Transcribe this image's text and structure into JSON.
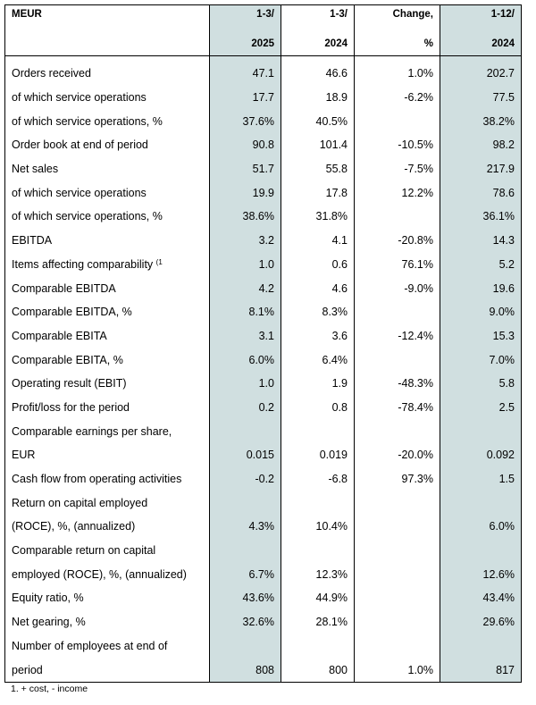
{
  "header": {
    "row1": [
      "MEUR",
      "1-3/",
      "1-3/",
      "Change,",
      "1-12/"
    ],
    "row2": [
      "",
      "2025",
      "2024",
      "%",
      "2024"
    ]
  },
  "rows": [
    {
      "label": "Orders received",
      "sup": "",
      "v": [
        "47.1",
        "46.6",
        "1.0%",
        "202.7"
      ]
    },
    {
      "label": "of which service operations",
      "sup": "",
      "v": [
        "17.7",
        "18.9",
        "-6.2%",
        "77.5"
      ]
    },
    {
      "label": "of which service operations, %",
      "sup": "",
      "v": [
        "37.6%",
        "40.5%",
        "",
        "38.2%"
      ]
    },
    {
      "label": "Order book at end of period",
      "sup": "",
      "v": [
        "90.8",
        "101.4",
        "-10.5%",
        "98.2"
      ]
    },
    {
      "label": "Net sales",
      "sup": "",
      "v": [
        "51.7",
        "55.8",
        "-7.5%",
        "217.9"
      ]
    },
    {
      "label": "of which service operations",
      "sup": "",
      "v": [
        "19.9",
        "17.8",
        "12.2%",
        "78.6"
      ]
    },
    {
      "label": "of which service operations, %",
      "sup": "",
      "v": [
        "38.6%",
        "31.8%",
        "",
        "36.1%"
      ]
    },
    {
      "label": "EBITDA",
      "sup": "",
      "v": [
        "3.2",
        "4.1",
        "-20.8%",
        "14.3"
      ]
    },
    {
      "label": "Items affecting comparability",
      "sup": "(1",
      "v": [
        "1.0",
        "0.6",
        "76.1%",
        "5.2"
      ]
    },
    {
      "label": "Comparable EBITDA",
      "sup": "",
      "v": [
        "4.2",
        "4.6",
        "-9.0%",
        "19.6"
      ]
    },
    {
      "label": "Comparable EBITDA, %",
      "sup": "",
      "v": [
        "8.1%",
        "8.3%",
        "",
        "9.0%"
      ]
    },
    {
      "label": "Comparable EBITA",
      "sup": "",
      "v": [
        "3.1",
        "3.6",
        "-12.4%",
        "15.3"
      ]
    },
    {
      "label": "Comparable EBITA, %",
      "sup": "",
      "v": [
        "6.0%",
        "6.4%",
        "",
        "7.0%"
      ]
    },
    {
      "label": "Operating result (EBIT)",
      "sup": "",
      "v": [
        "1.0",
        "1.9",
        "-48.3%",
        "5.8"
      ]
    },
    {
      "label": "Profit/loss for the period",
      "sup": "",
      "v": [
        "0.2",
        "0.8",
        "-78.4%",
        "2.5"
      ]
    },
    {
      "label": "Comparable earnings per share,",
      "sup": "",
      "v": [
        "",
        "",
        "",
        ""
      ]
    },
    {
      "label": "EUR",
      "sup": "",
      "v": [
        "0.015",
        "0.019",
        "-20.0%",
        "0.092"
      ]
    },
    {
      "label": "Cash flow from operating activities",
      "sup": "",
      "v": [
        "-0.2",
        "-6.8",
        "97.3%",
        "1.5"
      ]
    },
    {
      "label": "Return on capital employed",
      "sup": "",
      "v": [
        "",
        "",
        "",
        ""
      ]
    },
    {
      "label": "(ROCE), %, (annualized)",
      "sup": "",
      "v": [
        "4.3%",
        "10.4%",
        "",
        "6.0%"
      ]
    },
    {
      "label": "Comparable return on capital",
      "sup": "",
      "v": [
        "",
        "",
        "",
        ""
      ]
    },
    {
      "label": "employed (ROCE), %, (annualized)",
      "sup": "",
      "v": [
        "6.7%",
        "12.3%",
        "",
        "12.6%"
      ]
    },
    {
      "label": "Equity ratio, %",
      "sup": "",
      "v": [
        "43.6%",
        "44.9%",
        "",
        "43.4%"
      ]
    },
    {
      "label": "Net gearing, %",
      "sup": "",
      "v": [
        "32.6%",
        "28.1%",
        "",
        "29.6%"
      ]
    },
    {
      "label": "Number of employees at end of",
      "sup": "",
      "v": [
        "",
        "",
        "",
        ""
      ]
    },
    {
      "label": "period",
      "sup": "",
      "v": [
        "808",
        "800",
        "1.0%",
        "817"
      ]
    }
  ],
  "footnote": "1. + cost, - income"
}
